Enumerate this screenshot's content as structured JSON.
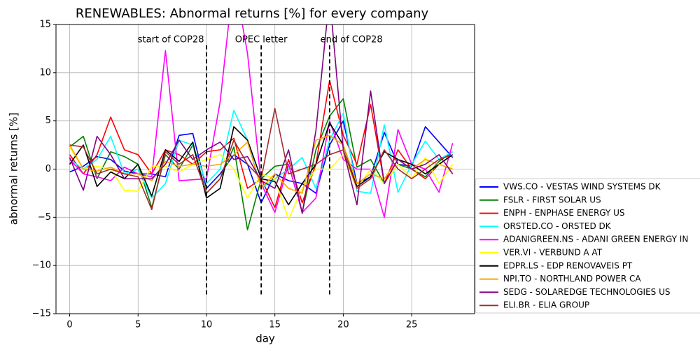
{
  "chart_data": {
    "type": "line",
    "title": "RENEWABLES: Abnormal returns [%] for every company",
    "xlabel": "day",
    "ylabel": "abnormal returns [%]",
    "x": [
      0,
      1,
      2,
      3,
      4,
      5,
      6,
      7,
      8,
      9,
      10,
      11,
      12,
      13,
      14,
      15,
      16,
      17,
      18,
      19,
      20,
      21,
      22,
      23,
      24,
      25,
      26,
      27,
      28
    ],
    "xlim": [
      -1,
      29.6
    ],
    "ylim": [
      -15,
      15
    ],
    "xticks": [
      0,
      5,
      10,
      15,
      20,
      25
    ],
    "yticks": [
      {
        "value": -15,
        "label": "−15"
      },
      {
        "value": -10,
        "label": "−10"
      },
      {
        "value": -5,
        "label": "−5"
      },
      0,
      5,
      10,
      15
    ],
    "grid": true,
    "legend": "outside right bottom",
    "vlines": [
      {
        "x": 10,
        "ymin": -13,
        "ymax": 13
      },
      {
        "x": 14,
        "ymin": -13,
        "ymax": 13
      },
      {
        "x": 19,
        "ymin": -13,
        "ymax": 13
      }
    ],
    "annotations": [
      {
        "text": "start of COP28",
        "x": 7.4,
        "y": 13.4
      },
      {
        "text": "OPEC letter",
        "x": 14,
        "y": 13.4
      },
      {
        "text": "end of COP28",
        "x": 20.6,
        "y": 13.4
      }
    ],
    "series": [
      {
        "name": "VWS.CO - VESTAS WIND SYSTEMS DK",
        "color": "#0000ff",
        "values": [
          -0.3,
          0.3,
          1.3,
          1.0,
          -0.2,
          -0.5,
          -0.5,
          -0.8,
          3.5,
          3.7,
          -2.0,
          -0.5,
          1.5,
          0.5,
          -3.5,
          -0.5,
          -1.2,
          -1.5,
          -2.5,
          2.5,
          5.0,
          -1.5,
          -0.8,
          3.8,
          0.5,
          0.3,
          4.4,
          2.8,
          1.2
        ]
      },
      {
        "name": "FSLR - FIRST SOLAR US",
        "color": "#008000",
        "values": [
          2.3,
          3.4,
          -1.0,
          1.8,
          1.3,
          0.5,
          -4.0,
          1.5,
          0.0,
          2.5,
          -2.5,
          -1.0,
          2.3,
          -6.3,
          -1.0,
          0.3,
          0.5,
          -4.5,
          2.0,
          5.5,
          7.3,
          0.2,
          1.0,
          -1.5,
          0.5,
          0.0,
          -0.8,
          0.8,
          1.8
        ]
      },
      {
        "name": "ENPH - ENPHASE ENERGY US",
        "color": "#ff0000",
        "values": [
          1.5,
          -0.5,
          1.5,
          5.4,
          2.0,
          1.5,
          -0.5,
          2.0,
          1.5,
          0.5,
          1.8,
          2.0,
          3.2,
          -2.0,
          -1.0,
          -4.0,
          1.0,
          -3.5,
          0.5,
          9.2,
          3.5,
          0.5,
          6.7,
          -1.5,
          2.0,
          0.0,
          -1.0,
          0.5,
          1.5
        ]
      },
      {
        "name": "ORSTED.CO - ORSTED DK",
        "color": "#00ffff",
        "values": [
          1.0,
          0.0,
          1.0,
          3.4,
          -0.5,
          0.0,
          -3.0,
          -1.5,
          3.0,
          2.5,
          -1.5,
          0.0,
          6.1,
          3.0,
          -2.0,
          -1.0,
          0.0,
          1.2,
          -2.0,
          3.0,
          5.8,
          -2.3,
          -2.5,
          4.6,
          -2.4,
          0.5,
          2.9,
          1.0,
          1.8
        ]
      },
      {
        "name": "ADANIGREEN.NS - ADANI GREEN ENERGY IN",
        "color": "#ff00ff",
        "values": [
          1.0,
          -0.5,
          -0.8,
          -1.2,
          0.2,
          -0.5,
          -0.8,
          12.3,
          -1.2,
          -1.1,
          -1.0,
          7.0,
          20.0,
          12.0,
          -1.5,
          -4.5,
          0.5,
          -4.5,
          -3.0,
          5.0,
          1.0,
          0.0,
          0.0,
          -5.0,
          4.1,
          0.5,
          0.0,
          -2.4,
          2.7
        ]
      },
      {
        "name": "VER.VI - VERBUND A AT",
        "color": "#ffff00",
        "values": [
          2.3,
          0.0,
          0.3,
          0.0,
          -2.2,
          -2.3,
          0.3,
          0.3,
          -0.3,
          0.5,
          1.0,
          1.5,
          0.0,
          -3.0,
          -0.5,
          -1.0,
          -5.2,
          -2.0,
          0.0,
          0.0,
          1.5,
          -2.0,
          0.0,
          -1.5,
          0.5,
          -1.0,
          1.2,
          -1.5,
          0.5
        ]
      },
      {
        "name": "EDPR.LS - EDP RENOVAVEIS PT",
        "color": "#000000",
        "values": [
          0.5,
          2.5,
          -1.8,
          -0.3,
          -1.0,
          0.5,
          -2.8,
          2.0,
          0.8,
          2.8,
          -3.0,
          -2.0,
          4.4,
          3.0,
          -1.0,
          -1.3,
          -3.7,
          -1.5,
          0.5,
          4.8,
          2.5,
          -1.8,
          -0.8,
          1.8,
          1.0,
          0.5,
          -0.5,
          0.5,
          1.5
        ]
      },
      {
        "name": "NPI.TO - NORTHLAND POWER CA",
        "color": "#ffa500",
        "values": [
          2.5,
          0.0,
          -0.2,
          0.2,
          -0.5,
          -0.5,
          -1.2,
          0.8,
          0.3,
          0.5,
          0.3,
          0.5,
          1.5,
          2.8,
          -2.0,
          -0.5,
          -2.0,
          -2.5,
          3.0,
          3.5,
          2.5,
          -1.5,
          -0.5,
          -1.0,
          1.0,
          0.0,
          1.0,
          0.5,
          0.0
        ]
      },
      {
        "name": "SEDG - SOLAREDGE TECHNOLOGIES US",
        "color": "#800080",
        "values": [
          1.2,
          -2.2,
          3.4,
          1.5,
          -1.0,
          -1.0,
          -1.0,
          0.5,
          3.0,
          1.0,
          2.0,
          2.8,
          1.0,
          1.3,
          -1.2,
          -2.0,
          2.0,
          -4.6,
          4.0,
          18.0,
          2.0,
          -3.7,
          8.1,
          -1.5,
          1.0,
          0.0,
          0.5,
          1.5,
          -0.5
        ]
      },
      {
        "name": "ELI.BR - ELIA GROUP",
        "color": "#a52a2a",
        "values": [
          2.5,
          2.3,
          -0.5,
          0.0,
          -0.5,
          -0.8,
          -4.2,
          1.8,
          0.5,
          1.5,
          -2.5,
          -1.0,
          3.0,
          0.5,
          -1.0,
          6.3,
          -0.5,
          0.0,
          0.5,
          1.5,
          2.0,
          -2.0,
          -1.0,
          2.0,
          0.0,
          -1.0,
          0.0,
          1.0,
          1.5
        ]
      }
    ]
  }
}
